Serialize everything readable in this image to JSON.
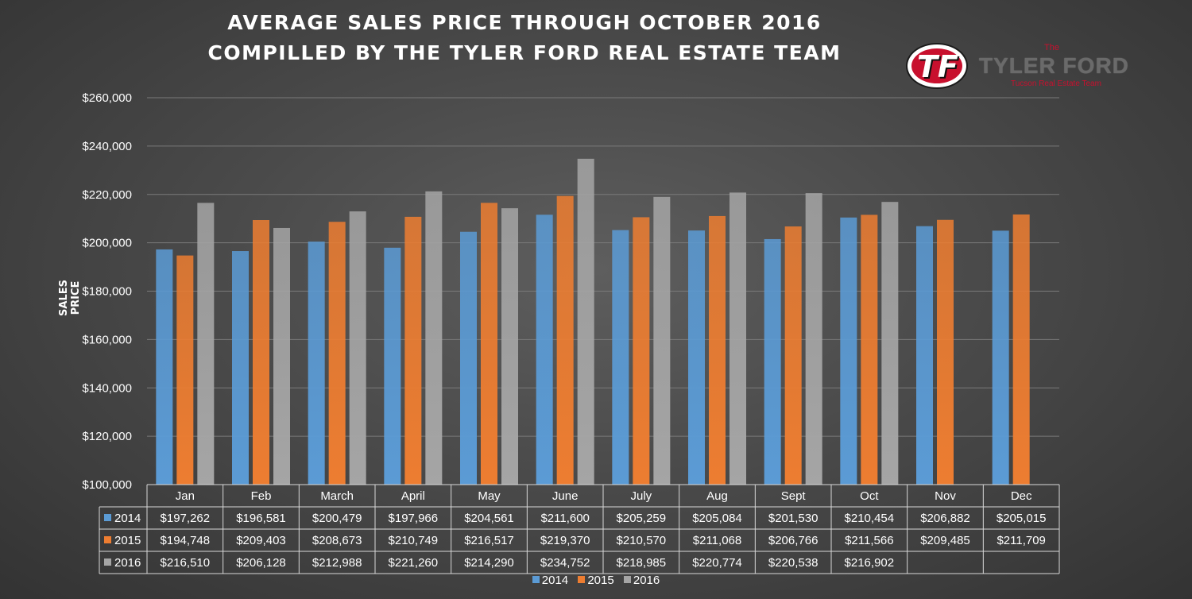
{
  "header": {
    "title_line1": "AVERAGE SALES PRICE THROUGH OCTOBER 2016",
    "title_line2": "COMPILLED BY THE TYLER FORD REAL ESTATE TEAM"
  },
  "logo": {
    "badge_text": "TF",
    "the": "The",
    "name": "TYLER FORD",
    "subtitle": "Tucson Real Estate Team",
    "badge_color": "#c8102e"
  },
  "chart_data": {
    "type": "bar",
    "title": "AVERAGE SALES PRICE THROUGH OCTOBER 2016",
    "subtitle": "COMPILLED BY THE TYLER FORD REAL ESTATE TEAM",
    "xlabel": "",
    "ylabel": "SALES PRICE",
    "ylim": [
      100000,
      260000
    ],
    "yticks": [
      "$100,000",
      "$120,000",
      "$140,000",
      "$160,000",
      "$180,000",
      "$200,000",
      "$220,000",
      "$240,000",
      "$260,000"
    ],
    "grid": true,
    "legend_position": "bottom",
    "categories": [
      "Jan",
      "Feb",
      "March",
      "April",
      "May",
      "June",
      "July",
      "Aug",
      "Sept",
      "Oct",
      "Nov",
      "Dec"
    ],
    "series": [
      {
        "name": "2014",
        "color": "#5b9bd5",
        "values": [
          197262,
          196581,
          200479,
          197966,
          204561,
          211600,
          205259,
          205084,
          201530,
          210454,
          206882,
          205015
        ],
        "labels": [
          "$197,262",
          "$196,581",
          "$200,479",
          "$197,966",
          "$204,561",
          "$211,600",
          "$205,259",
          "$205,084",
          "$201,530",
          "$210,454",
          "$206,882",
          "$205,015"
        ]
      },
      {
        "name": "2015",
        "color": "#ed7d31",
        "values": [
          194748,
          209403,
          208673,
          210749,
          216517,
          219370,
          210570,
          211068,
          206766,
          211566,
          209485,
          211709
        ],
        "labels": [
          "$194,748",
          "$209,403",
          "$208,673",
          "$210,749",
          "$216,517",
          "$219,370",
          "$210,570",
          "$211,068",
          "$206,766",
          "$211,566",
          "$209,485",
          "$211,709"
        ]
      },
      {
        "name": "2016",
        "color": "#a5a5a5",
        "values": [
          216510,
          206128,
          212988,
          221260,
          214290,
          234752,
          218985,
          220774,
          220538,
          216902,
          null,
          null
        ],
        "labels": [
          "$216,510",
          "$206,128",
          "$212,988",
          "$221,260",
          "$214,290",
          "$234,752",
          "$218,985",
          "$220,774",
          "$220,538",
          "$216,902",
          "",
          ""
        ]
      }
    ]
  }
}
